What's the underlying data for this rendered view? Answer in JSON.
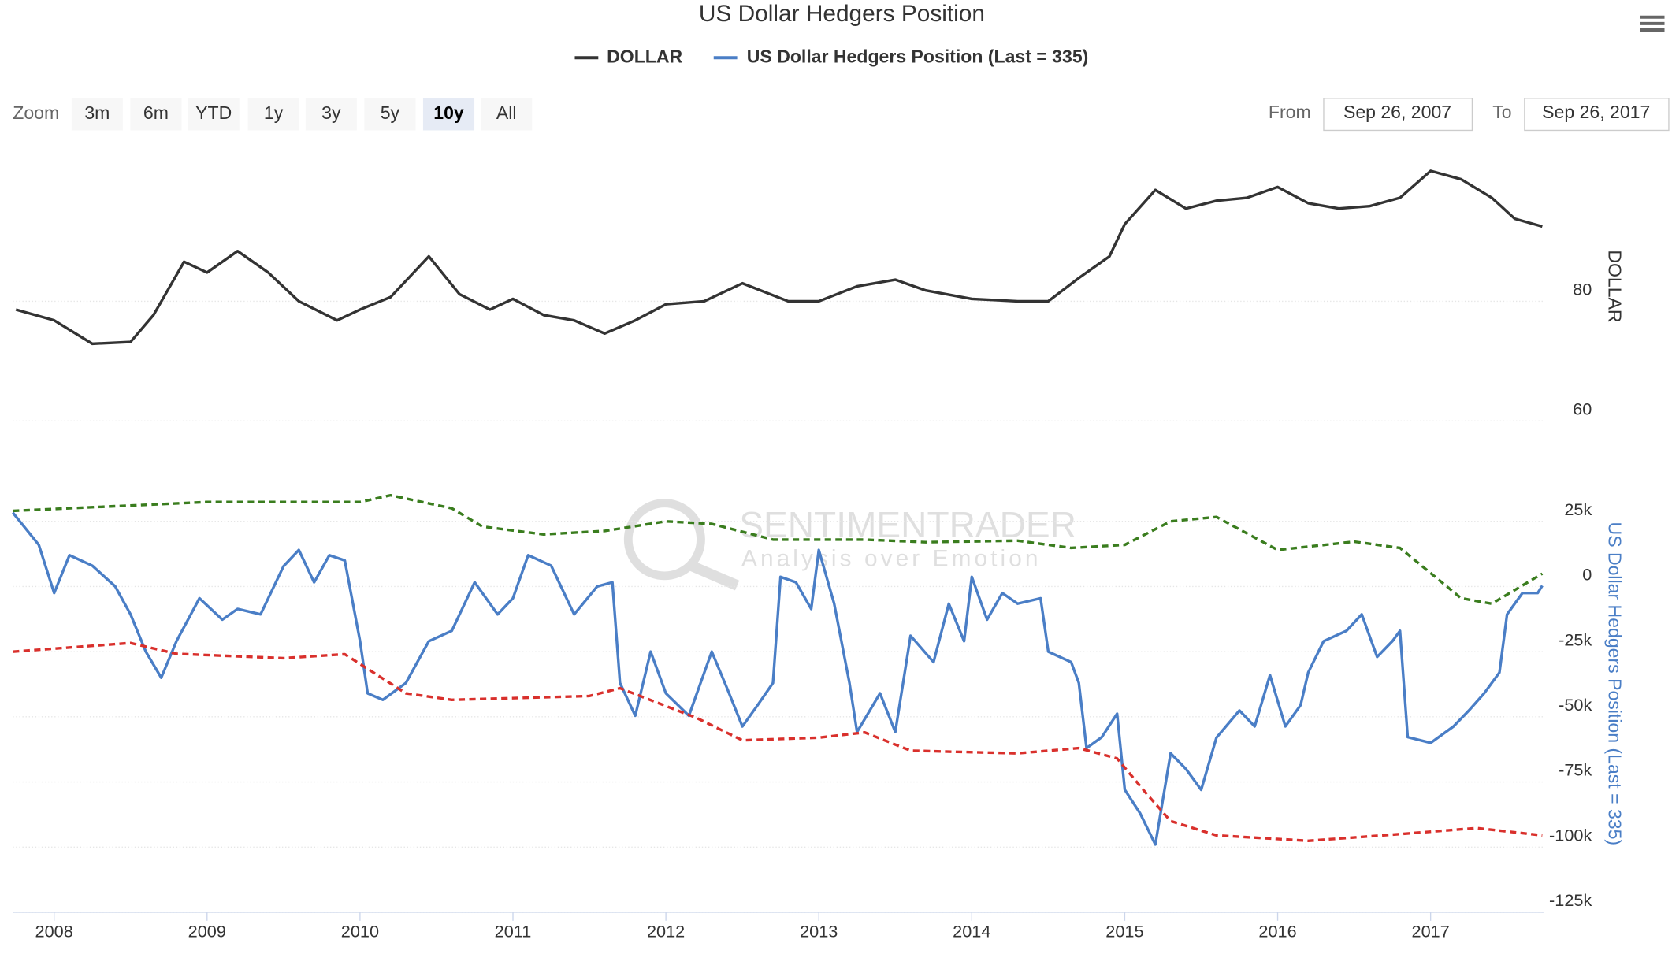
{
  "ui": {
    "zoom_label": "Zoom",
    "zoom_buttons": [
      "3m",
      "6m",
      "YTD",
      "1y",
      "3y",
      "5y",
      "10y",
      "All"
    ],
    "selected": 6,
    "from_label": "From",
    "from": "Sep 26, 2007",
    "to_label": "To",
    "to": "Sep 26, 2017",
    "watermark": [
      "SENTIMENTRADER",
      "Analysis over Emotion"
    ]
  },
  "chart_data": [
    {
      "type": "line",
      "title": "US Dollar Hedgers Position",
      "ylabel": "DOLLAR",
      "xlim": [
        2007.73,
        2017.74
      ],
      "ylim": [
        60,
        100
      ],
      "yticks": [
        60,
        80
      ],
      "grid": true,
      "series": [
        {
          "name": "DOLLAR",
          "color": "#333333",
          "x": [
            2007.75,
            2008.0,
            2008.25,
            2008.5,
            2008.65,
            2008.85,
            2009.0,
            2009.2,
            2009.4,
            2009.6,
            2009.85,
            2010.0,
            2010.2,
            2010.45,
            2010.65,
            2010.85,
            2011.0,
            2011.2,
            2011.4,
            2011.6,
            2011.8,
            2012.0,
            2012.25,
            2012.5,
            2012.8,
            2013.0,
            2013.25,
            2013.5,
            2013.7,
            2014.0,
            2014.3,
            2014.5,
            2014.7,
            2014.9,
            2015.0,
            2015.2,
            2015.4,
            2015.6,
            2015.8,
            2016.0,
            2016.2,
            2016.4,
            2016.6,
            2016.8,
            2017.0,
            2017.2,
            2017.4,
            2017.55,
            2017.73
          ],
          "values": [
            78.6,
            76.8,
            72.9,
            73.2,
            77.7,
            86.6,
            84.8,
            88.4,
            84.8,
            80,
            76.8,
            78.6,
            80.7,
            87.5,
            81.2,
            78.6,
            80.4,
            77.7,
            76.8,
            74.6,
            76.8,
            79.5,
            80,
            83,
            80,
            80,
            82.5,
            83.6,
            81.8,
            80.4,
            80,
            80,
            83.9,
            87.5,
            92.9,
            98.6,
            95.5,
            96.8,
            97.3,
            99.1,
            96.4,
            95.5,
            95.9,
            97.3,
            101.8,
            100.4,
            97.3,
            93.8,
            92.5
          ]
        }
      ]
    },
    {
      "type": "line",
      "ylabel": "US Dollar Hedgers Position (Last = 335)",
      "xlim": [
        2007.73,
        2017.74
      ],
      "ylim": [
        -125000,
        50000
      ],
      "yticks": [
        {
          "value": -125000,
          "label": "-125k"
        },
        {
          "value": -100000,
          "label": "-100k"
        },
        {
          "value": -75000,
          "label": "-75k"
        },
        {
          "value": -50000,
          "label": "-50k"
        },
        {
          "value": -25000,
          "label": "-25k"
        },
        0,
        {
          "value": 25000,
          "label": "25k"
        }
      ],
      "xticks": [
        2008,
        2009,
        2010,
        2011,
        2012,
        2013,
        2014,
        2015,
        2016,
        2017
      ],
      "grid": true,
      "series": [
        {
          "name": "US Dollar Hedgers Position (Last = 335)",
          "color": "#4a7ec6",
          "x": [
            2007.73,
            2007.9,
            2008.0,
            2008.1,
            2008.25,
            2008.4,
            2008.5,
            2008.6,
            2008.7,
            2008.8,
            2008.95,
            2009.1,
            2009.2,
            2009.35,
            2009.5,
            2009.6,
            2009.7,
            2009.8,
            2009.9,
            2010.0,
            2010.05,
            2010.15,
            2010.3,
            2010.45,
            2010.6,
            2010.75,
            2010.9,
            2011.0,
            2011.1,
            2011.25,
            2011.4,
            2011.55,
            2011.65,
            2011.7,
            2011.8,
            2011.9,
            2012.0,
            2012.15,
            2012.3,
            2012.4,
            2012.5,
            2012.6,
            2012.7,
            2012.75,
            2012.85,
            2012.95,
            2013.0,
            2013.1,
            2013.2,
            2013.25,
            2013.4,
            2013.5,
            2013.6,
            2013.75,
            2013.85,
            2013.95,
            2014.0,
            2014.1,
            2014.2,
            2014.3,
            2014.45,
            2014.5,
            2014.65,
            2014.7,
            2014.75,
            2014.85,
            2014.95,
            2015.0,
            2015.1,
            2015.2,
            2015.3,
            2015.4,
            2015.5,
            2015.6,
            2015.75,
            2015.85,
            2015.95,
            2016.05,
            2016.15,
            2016.2,
            2016.3,
            2016.45,
            2016.55,
            2016.65,
            2016.75,
            2016.8,
            2016.85,
            2017.0,
            2017.15,
            2017.25,
            2017.35,
            2017.45,
            2017.5,
            2017.6,
            2017.7,
            2017.73
          ],
          "values": [
            28300,
            16000,
            -2500,
            12000,
            8000,
            0,
            -10700,
            -25000,
            -35000,
            -21000,
            -4500,
            -12700,
            -8600,
            -10700,
            7800,
            14000,
            1600,
            12000,
            10000,
            -21000,
            -41000,
            -43500,
            -37000,
            -21000,
            -17000,
            1600,
            -10700,
            -4500,
            12000,
            8000,
            -10700,
            0,
            1600,
            -37000,
            -49600,
            -25000,
            -41000,
            -49600,
            -25000,
            -39000,
            -53700,
            -45500,
            -37000,
            3700,
            1600,
            -8600,
            14000,
            -6600,
            -37000,
            -55800,
            -41000,
            -55800,
            -18900,
            -29000,
            -6600,
            -21000,
            3700,
            -12700,
            -2500,
            -6600,
            -4500,
            -25000,
            -29000,
            -37000,
            -62000,
            -57800,
            -48800,
            -78000,
            -87000,
            -99000,
            -64000,
            -70000,
            -78000,
            -58000,
            -47600,
            -53700,
            -34000,
            -53700,
            -45500,
            -33000,
            -21000,
            -17000,
            -10700,
            -27000,
            -21000,
            -17000,
            -57800,
            -60000,
            -53700,
            -47600,
            -41000,
            -33000,
            -10700,
            -2500,
            -2500,
            335
          ]
        },
        {
          "color": "#3a7d1e",
          "x": [
            2007.73,
            2009.0,
            2010.0,
            2010.2,
            2010.6,
            2010.8,
            2011.2,
            2011.6,
            2012.0,
            2012.3,
            2012.7,
            2013.3,
            2013.7,
            2014.3,
            2014.65,
            2015.0,
            2015.3,
            2015.6,
            2016.0,
            2016.5,
            2016.8,
            2017.2,
            2017.4,
            2017.73
          ],
          "values": [
            29000,
            32400,
            32400,
            35000,
            30000,
            23000,
            20000,
            21300,
            25000,
            24000,
            18000,
            18000,
            17000,
            17600,
            14800,
            16000,
            25000,
            26700,
            14000,
            17200,
            14800,
            -4500,
            -6600,
            4900
          ]
        },
        {
          "color": "#d9302c",
          "x": [
            2007.73,
            2008.5,
            2008.8,
            2009.5,
            2009.9,
            2010.3,
            2010.6,
            2011.5,
            2011.7,
            2012.2,
            2012.5,
            2013.0,
            2013.3,
            2013.6,
            2014.3,
            2014.7,
            2014.95,
            2015.15,
            2015.3,
            2015.6,
            2016.2,
            2016.8,
            2017.3,
            2017.73
          ],
          "values": [
            -25000,
            -21700,
            -25800,
            -27500,
            -26000,
            -41000,
            -43500,
            -42000,
            -39000,
            -50400,
            -59000,
            -58000,
            -56000,
            -63000,
            -64000,
            -62000,
            -66000,
            -80000,
            -90000,
            -95500,
            -97600,
            -95000,
            -92700,
            -95500
          ]
        }
      ]
    }
  ]
}
